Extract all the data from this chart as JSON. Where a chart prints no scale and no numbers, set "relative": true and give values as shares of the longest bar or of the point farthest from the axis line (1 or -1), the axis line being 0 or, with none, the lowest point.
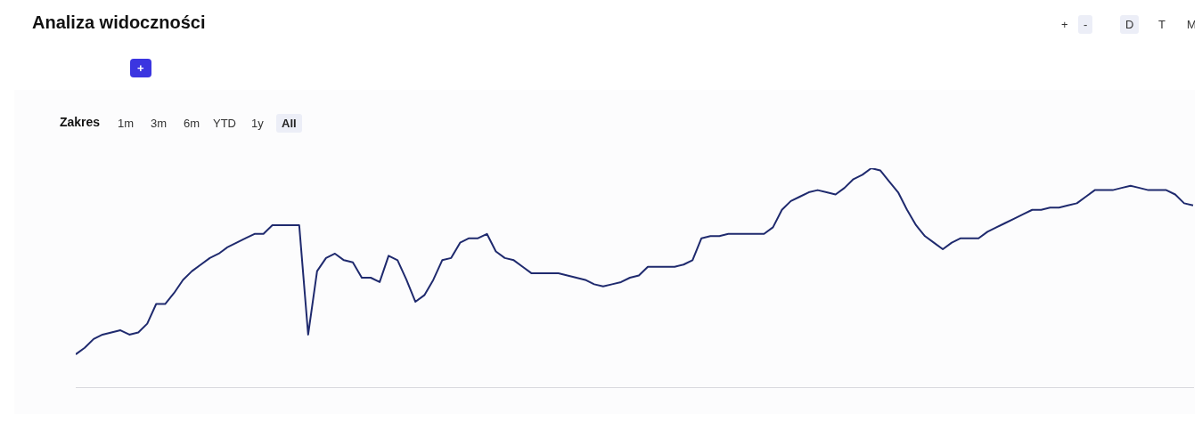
{
  "chart_data": {
    "type": "line",
    "title": "Analiza widoczności",
    "relative": true,
    "grid": false,
    "legend": false,
    "marker": "none",
    "line_style": "solid",
    "annotations": [
      "+",
      "-",
      "D",
      "T",
      "M",
      "Zakres",
      "1m",
      "3m",
      "6m",
      "YTD",
      "1y",
      "All",
      "+"
    ],
    "categories": [
      null,
      null,
      null,
      null,
      null,
      null,
      null,
      null,
      null,
      null,
      null,
      null,
      null,
      null,
      null,
      null,
      null,
      null,
      null,
      null,
      null,
      null,
      null,
      null,
      null,
      null,
      null,
      null,
      null,
      null,
      null,
      null,
      null,
      null,
      null,
      null,
      null,
      null,
      null,
      null,
      null,
      null,
      null,
      null,
      null,
      null,
      null,
      null,
      null,
      null,
      null,
      null,
      null,
      null,
      null,
      null,
      null,
      null,
      null,
      null,
      null,
      null,
      null,
      null,
      null,
      null,
      null,
      null,
      null,
      null,
      null,
      null,
      null,
      null,
      null,
      null,
      null,
      null,
      null,
      null,
      null,
      null,
      null,
      null,
      null,
      null,
      null,
      null,
      null,
      null,
      null,
      null,
      null,
      null,
      null,
      null,
      null,
      null,
      null,
      null,
      null,
      null,
      null,
      null,
      null,
      null,
      null,
      null,
      null,
      null,
      null,
      null,
      null,
      null,
      null,
      null,
      null,
      null,
      null,
      null,
      null,
      null,
      null,
      null,
      null,
      null
    ],
    "series": [
      {
        "color": "#1f2a6e",
        "values": [
          0.15,
          0.18,
          0.22,
          0.24,
          0.25,
          0.26,
          0.24,
          0.25,
          0.29,
          0.38,
          0.38,
          0.43,
          0.49,
          0.53,
          0.56,
          0.59,
          0.61,
          0.64,
          0.66,
          0.68,
          0.7,
          0.7,
          0.74,
          0.74,
          0.74,
          0.74,
          0.24,
          0.53,
          0.59,
          0.61,
          0.58,
          0.57,
          0.5,
          0.5,
          0.48,
          0.6,
          0.58,
          0.49,
          0.39,
          0.42,
          0.49,
          0.58,
          0.59,
          0.66,
          0.68,
          0.68,
          0.7,
          0.62,
          0.59,
          0.58,
          0.55,
          0.52,
          0.52,
          0.52,
          0.52,
          0.51,
          0.5,
          0.49,
          0.47,
          0.46,
          0.47,
          0.48,
          0.5,
          0.51,
          0.55,
          0.55,
          0.55,
          0.55,
          0.56,
          0.58,
          0.68,
          0.69,
          0.69,
          0.7,
          0.7,
          0.7,
          0.7,
          0.7,
          0.73,
          0.81,
          0.85,
          0.87,
          0.89,
          0.9,
          0.89,
          0.88,
          0.91,
          0.95,
          0.97,
          1,
          0.99,
          0.94,
          0.89,
          0.81,
          0.74,
          0.69,
          0.66,
          0.63,
          0.66,
          0.68,
          0.68,
          0.68,
          0.71,
          0.73,
          0.75,
          0.77,
          0.79,
          0.81,
          0.81,
          0.82,
          0.82,
          0.83,
          0.84,
          0.87,
          0.9,
          0.9,
          0.9,
          0.91,
          0.92,
          0.91,
          0.9,
          0.9,
          0.9,
          0.88,
          0.84,
          0.83
        ]
      }
    ]
  }
}
